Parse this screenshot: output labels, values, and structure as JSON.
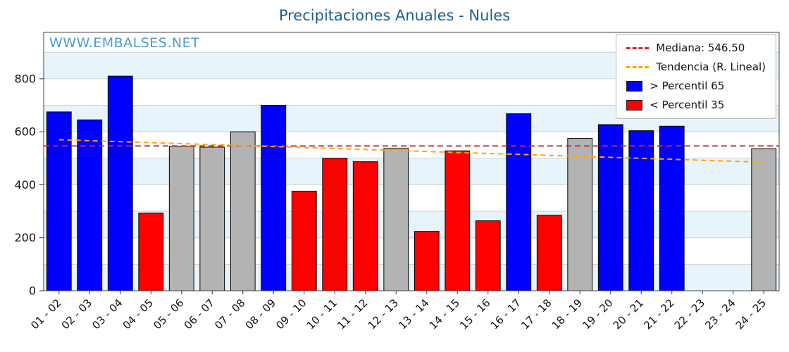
{
  "page": {
    "title": "Precipitaciones Anuales - Nules",
    "watermark": "WWW.EMBALSES.NET"
  },
  "legend": {
    "items": [
      {
        "label": "Mediana: 546.50",
        "type": "dashed-line",
        "color": "#d62728"
      },
      {
        "label": "Tendencia (R. Lineal)",
        "type": "dashed-line",
        "color": "#ffa500"
      },
      {
        "label": "> Percentil 65",
        "type": "square",
        "color": "#0000ff"
      },
      {
        "label": "< Percentil 35",
        "type": "square",
        "color": "#ff0000"
      }
    ]
  },
  "chart_data": {
    "type": "bar",
    "title": "Precipitaciones Anuales - Nules",
    "categories": [
      "01 - 02",
      "02 - 03",
      "03 - 04",
      "04 - 05",
      "05 - 06",
      "06 - 07",
      "07 - 08",
      "08 - 09",
      "09 - 10",
      "10 - 11",
      "11 - 12",
      "12 - 13",
      "13 - 14",
      "14 - 15",
      "15 - 16",
      "16 - 17",
      "17 - 18",
      "18 - 19",
      "19 - 20",
      "20 - 21",
      "21 - 22",
      "22 - 23",
      "23 - 24",
      "24 - 25"
    ],
    "values": [
      675,
      645,
      810,
      293,
      545,
      542,
      600,
      700,
      376,
      500,
      487,
      537,
      224,
      528,
      264,
      668,
      285,
      575,
      627,
      604,
      621,
      null,
      null,
      536
    ],
    "bar_colors": [
      "blue",
      "blue",
      "blue",
      "red",
      "gray",
      "gray",
      "gray",
      "blue",
      "red",
      "red",
      "red",
      "gray",
      "red",
      "red",
      "red",
      "blue",
      "red",
      "gray",
      "blue",
      "blue",
      "blue",
      null,
      null,
      "gray"
    ],
    "median": 546.5,
    "trend": {
      "start": 570,
      "end": 485
    },
    "ylim": [
      0,
      975
    ],
    "yticks": [
      0,
      200,
      400,
      600,
      800
    ],
    "grid": true,
    "legend_position": "upper right",
    "xlabel": "",
    "ylabel": "",
    "colors": {
      "blue": "#0000ff",
      "red": "#ff0000",
      "gray": "#b3b3b3",
      "median": "#d62728",
      "trend": "#ffa500",
      "band": "#e8f4fb",
      "band_alt": "#ffffff",
      "gridline": "#d0d0d0"
    }
  }
}
